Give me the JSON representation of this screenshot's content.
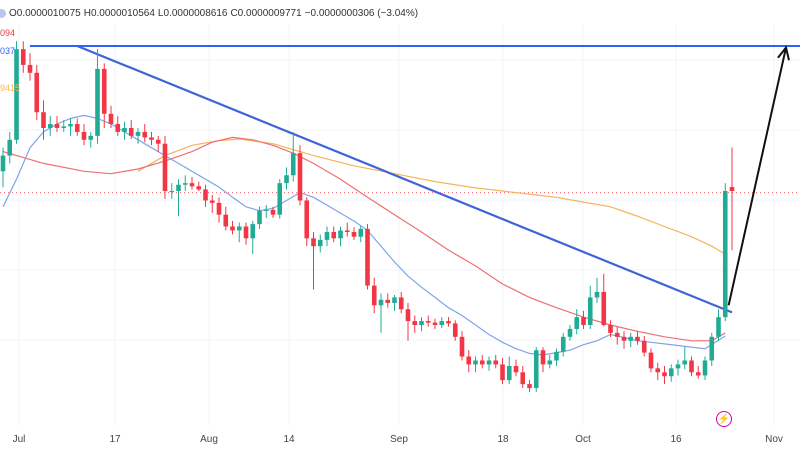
{
  "legend_bar": {
    "open": "O0.0000010075",
    "high": "H0.0000010564",
    "low": "L0.0000008616",
    "close": "C0.0000009771",
    "change": "−0.0000000306 (−3.04%)"
  },
  "price_labels": [
    {
      "text": "094",
      "color": "#f23645"
    },
    {
      "text": "037",
      "color": "#2962ff"
    },
    {
      "text": "9415",
      "color": "#ffb74d"
    }
  ],
  "colors": {
    "up": "#22ab94",
    "down": "#f23645",
    "resistance": "#2962ff",
    "trendline": "#3f63d8",
    "ma_short": "#7fa6e8",
    "ma_mid": "#ef6f73",
    "ma_long": "#f4b45a",
    "arrow": "#111111",
    "grid": "#f0f3fa",
    "badge": "#d400a8"
  },
  "badge_icon": "lightning-icon",
  "chart_data": {
    "type": "candlestick",
    "x_ticks": [
      "Jul",
      "17",
      "Aug",
      "14",
      "Sep",
      "18",
      "Oct",
      "16",
      "Nov"
    ],
    "y_range": [
      6e-07,
      1.1e-06
    ],
    "candles": [
      [
        8.95e-07,
        9.25e-07,
        8.75e-07,
        9.15e-07
      ],
      [
        9.15e-07,
        9.45e-07,
        9.05e-07,
        9.35e-07
      ],
      [
        9.35e-07,
        1.06e-06,
        9.3e-07,
        1.05e-06
      ],
      [
        1.05e-06,
        1.06e-06,
        1.02e-06,
        1.03e-06
      ],
      [
        1.03e-06,
        1.045e-06,
        1.01e-06,
        1.02e-06
      ],
      [
        1.02e-06,
        1.03e-06,
        9.6e-07,
        9.7e-07
      ],
      [
        9.7e-07,
        9.85e-07,
        9.35e-07,
        9.5e-07
      ],
      [
        9.5e-07,
        9.65e-07,
        9.4e-07,
        9.55e-07
      ],
      [
        9.55e-07,
        9.65e-07,
        9.45e-07,
        9.5e-07
      ],
      [
        9.5e-07,
        9.6e-07,
        9.45e-07,
        9.52e-07
      ],
      [
        9.52e-07,
        9.62e-07,
        9.4e-07,
        9.55e-07
      ],
      [
        9.55e-07,
        9.62e-07,
        9.4e-07,
        9.45e-07
      ],
      [
        9.45e-07,
        9.55e-07,
        9.28e-07,
        9.35e-07
      ],
      [
        9.35e-07,
        9.45e-07,
        9.25e-07,
        9.4e-07
      ],
      [
        9.4e-07,
        1.05e-06,
        9.3e-07,
        1.025e-06
      ],
      [
        1.025e-06,
        1.032e-06,
        9.5e-07,
        9.68e-07
      ],
      [
        9.68e-07,
        9.78e-07,
        9.5e-07,
        9.55e-07
      ],
      [
        9.55e-07,
        9.65e-07,
        9.4e-07,
        9.45e-07
      ],
      [
        9.45e-07,
        9.58e-07,
        9.35e-07,
        9.5e-07
      ],
      [
        9.5e-07,
        9.6e-07,
        9.36e-07,
        9.4e-07
      ],
      [
        9.4e-07,
        9.5e-07,
        9.3e-07,
        9.45e-07
      ],
      [
        9.45e-07,
        9.55e-07,
        9.32e-07,
        9.38e-07
      ],
      [
        9.38e-07,
        9.45e-07,
        9.28e-07,
        9.35e-07
      ],
      [
        9.35e-07,
        9.4e-07,
        9.2e-07,
        9.3e-07
      ],
      [
        9.3e-07,
        9.4e-07,
        8.6e-07,
        8.7e-07
      ],
      [
        8.7e-07,
        8.8e-07,
        8.6e-07,
        8.7e-07
      ],
      [
        8.7e-07,
        8.85e-07,
        8.38e-07,
        8.78e-07
      ],
      [
        8.78e-07,
        8.9e-07,
        8.7e-07,
        8.8e-07
      ],
      [
        8.8e-07,
        8.88e-07,
        8.72e-07,
        8.76e-07
      ],
      [
        8.76e-07,
        8.82e-07,
        8.7e-07,
        8.72e-07
      ],
      [
        8.72e-07,
        8.78e-07,
        8.5e-07,
        8.58e-07
      ],
      [
        8.58e-07,
        8.65e-07,
        8.42e-07,
        8.55e-07
      ],
      [
        8.55e-07,
        8.62e-07,
        8.3e-07,
        8.4e-07
      ],
      [
        8.4e-07,
        8.5e-07,
        8.2e-07,
        8.25e-07
      ],
      [
        8.25e-07,
        8.32e-07,
        8.15e-07,
        8.2e-07
      ],
      [
        8.2e-07,
        8.3e-07,
        8.05e-07,
        8.25e-07
      ],
      [
        8.25e-07,
        8.3e-07,
        8.02e-07,
        8.1e-07
      ],
      [
        8.1e-07,
        8.32e-07,
        7.9e-07,
        8.28e-07
      ],
      [
        8.28e-07,
        8.5e-07,
        8.22e-07,
        8.45e-07
      ],
      [
        8.45e-07,
        8.52e-07,
        8.36e-07,
        8.46e-07
      ],
      [
        8.46e-07,
        8.5e-07,
        8.36e-07,
        8.4e-07
      ],
      [
        8.4e-07,
        8.85e-07,
        8.35e-07,
        8.8e-07
      ],
      [
        8.8e-07,
        9e-07,
        8.72e-07,
        8.9e-07
      ],
      [
        8.9e-07,
        9.45e-07,
        8.82e-07,
        9.18e-07
      ],
      [
        9.18e-07,
        9.28e-07,
        8.52e-07,
        8.58e-07
      ],
      [
        8.58e-07,
        8.62e-07,
        8e-07,
        8.1e-07
      ],
      [
        8.1e-07,
        8.18e-07,
        7.45e-07,
        8e-07
      ],
      [
        8e-07,
        8.15e-07,
        7.92e-07,
        8.08e-07
      ],
      [
        8.08e-07,
        8.25e-07,
        8e-07,
        8.18e-07
      ],
      [
        8.18e-07,
        8.25e-07,
        8.05e-07,
        8.1e-07
      ],
      [
        8.1e-07,
        8.25e-07,
        8e-07,
        8.2e-07
      ],
      [
        8.2e-07,
        8.3e-07,
        8.12e-07,
        8.18e-07
      ],
      [
        8.18e-07,
        8.24e-07,
        8.08e-07,
        8.12e-07
      ],
      [
        8.12e-07,
        8.26e-07,
        8.05e-07,
        8.22e-07
      ],
      [
        8.22e-07,
        8.28e-07,
        7.45e-07,
        7.5e-07
      ],
      [
        7.5e-07,
        7.6e-07,
        7.15e-07,
        7.25e-07
      ],
      [
        7.25e-07,
        7.4e-07,
        6.9e-07,
        7.32e-07
      ],
      [
        7.32e-07,
        7.4e-07,
        7.22e-07,
        7.28e-07
      ],
      [
        7.28e-07,
        7.38e-07,
        7.18e-07,
        7.35e-07
      ],
      [
        7.35e-07,
        7.42e-07,
        7.15e-07,
        7.2e-07
      ],
      [
        7.2e-07,
        7.28e-07,
        6.8e-07,
        7.05e-07
      ],
      [
        7.05e-07,
        7.12e-07,
        6.9e-07,
        7e-07
      ],
      [
        7e-07,
        7.1e-07,
        6.92e-07,
        7.05e-07
      ],
      [
        7.05e-07,
        7.12e-07,
        6.98e-07,
        7.03e-07
      ],
      [
        7.03e-07,
        7.08e-07,
        6.95e-07,
        7e-07
      ],
      [
        7e-07,
        7.1e-07,
        6.96e-07,
        7.05e-07
      ],
      [
        7.05e-07,
        7.1e-07,
        6.98e-07,
        7.02e-07
      ],
      [
        7.02e-07,
        7.06e-07,
        6.8e-07,
        6.85e-07
      ],
      [
        6.85e-07,
        6.92e-07,
        6.55e-07,
        6.6e-07
      ],
      [
        6.6e-07,
        6.68e-07,
        6.4e-07,
        6.5e-07
      ],
      [
        6.5e-07,
        6.6e-07,
        6.4e-07,
        6.55e-07
      ],
      [
        6.55e-07,
        6.62e-07,
        6.45e-07,
        6.5e-07
      ],
      [
        6.5e-07,
        6.6e-07,
        6.42e-07,
        6.55e-07
      ],
      [
        6.55e-07,
        6.62e-07,
        6.45e-07,
        6.5e-07
      ],
      [
        6.5e-07,
        6.58e-07,
        6.25e-07,
        6.3e-07
      ],
      [
        6.3e-07,
        6.6e-07,
        6.25e-07,
        6.48e-07
      ],
      [
        6.48e-07,
        6.56e-07,
        6.35e-07,
        6.4e-07
      ],
      [
        6.4e-07,
        6.48e-07,
        6.2e-07,
        6.25e-07
      ],
      [
        6.25e-07,
        6.3e-07,
        6.15e-07,
        6.2e-07
      ],
      [
        6.2e-07,
        6.72e-07,
        6.15e-07,
        6.68e-07
      ],
      [
        6.68e-07,
        6.72e-07,
        6.4e-07,
        6.5e-07
      ],
      [
        6.5e-07,
        6.62e-07,
        6.45e-07,
        6.55e-07
      ],
      [
        6.55e-07,
        6.7e-07,
        6.48e-07,
        6.66e-07
      ],
      [
        6.66e-07,
        6.9e-07,
        6.6e-07,
        6.85e-07
      ],
      [
        6.85e-07,
        7e-07,
        6.8e-07,
        6.95e-07
      ],
      [
        6.95e-07,
        7.2e-07,
        6.88e-07,
        7.1e-07
      ],
      [
        7.1e-07,
        7.18e-07,
        6.95e-07,
        7e-07
      ],
      [
        7e-07,
        7.5e-07,
        6.95e-07,
        7.35e-07
      ],
      [
        7.35e-07,
        7.6e-07,
        7.28e-07,
        7.42e-07
      ],
      [
        7.42e-07,
        7.65e-07,
        6.98e-07,
        7e-07
      ],
      [
        7e-07,
        7.06e-07,
        6.85e-07,
        6.9e-07
      ],
      [
        6.9e-07,
        6.98e-07,
        6.75e-07,
        6.85e-07
      ],
      [
        6.85e-07,
        6.92e-07,
        6.7e-07,
        6.8e-07
      ],
      [
        6.8e-07,
        6.9e-07,
        6.72e-07,
        6.85e-07
      ],
      [
        6.85e-07,
        6.92e-07,
        6.75e-07,
        6.8e-07
      ],
      [
        6.8e-07,
        6.86e-07,
        6.6e-07,
        6.65e-07
      ],
      [
        6.65e-07,
        6.7e-07,
        6.4e-07,
        6.45e-07
      ],
      [
        6.45e-07,
        6.52e-07,
        6.3e-07,
        6.4e-07
      ],
      [
        6.4e-07,
        6.48e-07,
        6.25e-07,
        6.35e-07
      ],
      [
        6.35e-07,
        6.5e-07,
        6.28e-07,
        6.45e-07
      ],
      [
        6.45e-07,
        6.56e-07,
        6.36e-07,
        6.5e-07
      ],
      [
        6.5e-07,
        6.72e-07,
        6.44e-07,
        6.55e-07
      ],
      [
        6.55e-07,
        6.6e-07,
        6.35e-07,
        6.4e-07
      ],
      [
        6.4e-07,
        6.48e-07,
        6.32e-07,
        6.36e-07
      ],
      [
        6.36e-07,
        6.6e-07,
        6.3e-07,
        6.55e-07
      ],
      [
        6.55e-07,
        6.9e-07,
        6.48e-07,
        6.85e-07
      ],
      [
        6.85e-07,
        7.2e-07,
        6.8e-07,
        7.1e-07
      ],
      [
        7.1e-07,
        8.8e-07,
        7.05e-07,
        8.7e-07
      ],
      [
        8.75e-07,
        9.25e-07,
        7.95e-07,
        8.7e-07
      ]
    ],
    "ma_short": [
      [
        0,
        8.5e-07
      ],
      [
        2,
        8.85e-07
      ],
      [
        4,
        9.25e-07
      ],
      [
        6,
        9.45e-07
      ],
      [
        8,
        9.55e-07
      ],
      [
        10,
        9.62e-07
      ],
      [
        12,
        9.66e-07
      ],
      [
        14,
        9.62e-07
      ],
      [
        16,
        9.55e-07
      ],
      [
        18,
        9.45e-07
      ],
      [
        20,
        9.35e-07
      ],
      [
        22,
        9.25e-07
      ],
      [
        24,
        9.15e-07
      ],
      [
        26,
        9.05e-07
      ],
      [
        28,
        8.95e-07
      ],
      [
        30,
        8.85e-07
      ],
      [
        32,
        8.75e-07
      ],
      [
        34,
        8.62e-07
      ],
      [
        36,
        8.5e-07
      ],
      [
        38,
        8.45e-07
      ],
      [
        40,
        8.48e-07
      ],
      [
        42,
        8.58e-07
      ],
      [
        44,
        8.68e-07
      ],
      [
        46,
        8.62e-07
      ],
      [
        48,
        8.52e-07
      ],
      [
        50,
        8.42e-07
      ],
      [
        52,
        8.32e-07
      ],
      [
        54,
        8.2e-07
      ],
      [
        56,
        8e-07
      ],
      [
        58,
        7.8e-07
      ],
      [
        60,
        7.62e-07
      ],
      [
        62,
        7.48e-07
      ],
      [
        64,
        7.35e-07
      ],
      [
        66,
        7.22e-07
      ],
      [
        68,
        7.12e-07
      ],
      [
        70,
        7e-07
      ],
      [
        72,
        6.88e-07
      ],
      [
        74,
        6.78e-07
      ],
      [
        76,
        6.7e-07
      ],
      [
        78,
        6.64e-07
      ],
      [
        80,
        6.62e-07
      ],
      [
        82,
        6.65e-07
      ],
      [
        84,
        6.68e-07
      ],
      [
        86,
        6.75e-07
      ],
      [
        88,
        6.8e-07
      ],
      [
        90,
        6.88e-07
      ],
      [
        92,
        6.84e-07
      ],
      [
        94,
        6.8e-07
      ],
      [
        96,
        6.78e-07
      ],
      [
        98,
        6.76e-07
      ],
      [
        100,
        6.74e-07
      ],
      [
        102,
        6.72e-07
      ],
      [
        104,
        6.7e-07
      ],
      [
        107,
        6.86e-07
      ]
    ],
    "ma_mid": [
      [
        0,
        9.2e-07
      ],
      [
        6,
        9.05e-07
      ],
      [
        12,
        8.95e-07
      ],
      [
        16,
        8.92e-07
      ],
      [
        20,
        8.98e-07
      ],
      [
        24,
        9.08e-07
      ],
      [
        28,
        9.2e-07
      ],
      [
        31,
        9.32e-07
      ],
      [
        34,
        9.38e-07
      ],
      [
        37,
        9.35e-07
      ],
      [
        40,
        9.28e-07
      ],
      [
        43,
        9.18e-07
      ],
      [
        46,
        9.05e-07
      ],
      [
        50,
        8.85e-07
      ],
      [
        54,
        8.62e-07
      ],
      [
        58,
        8.4e-07
      ],
      [
        62,
        8.18e-07
      ],
      [
        66,
        7.95e-07
      ],
      [
        70,
        7.75e-07
      ],
      [
        74,
        7.52e-07
      ],
      [
        78,
        7.35e-07
      ],
      [
        82,
        7.22e-07
      ],
      [
        86,
        7.1e-07
      ],
      [
        90,
        7e-07
      ],
      [
        94,
        6.92e-07
      ],
      [
        98,
        6.85e-07
      ],
      [
        102,
        6.8e-07
      ],
      [
        105,
        6.8e-07
      ],
      [
        107,
        6.9e-07
      ]
    ],
    "ma_long": [
      [
        20,
        8.95e-07
      ],
      [
        24,
        9.15e-07
      ],
      [
        28,
        9.28e-07
      ],
      [
        32,
        9.34e-07
      ],
      [
        35,
        9.36e-07
      ],
      [
        40,
        9.3e-07
      ],
      [
        46,
        9.15e-07
      ],
      [
        52,
        9.02e-07
      ],
      [
        58,
        8.92e-07
      ],
      [
        64,
        8.82e-07
      ],
      [
        70,
        8.74e-07
      ],
      [
        76,
        8.68e-07
      ],
      [
        82,
        8.62e-07
      ],
      [
        86,
        8.56e-07
      ],
      [
        90,
        8.5e-07
      ],
      [
        94,
        8.38e-07
      ],
      [
        98,
        8.25e-07
      ],
      [
        102,
        8.12e-07
      ],
      [
        105,
        8e-07
      ],
      [
        107,
        7.9e-07
      ]
    ],
    "resistance_level": 1.054e-06,
    "trendline": [
      [
        11,
        1.054e-06
      ],
      [
        108,
        7.16e-07
      ]
    ],
    "projection_arrow": [
      [
        107.5,
        7.25e-07
      ],
      [
        116,
        1.052e-06
      ]
    ],
    "last_price": 8.68e-07
  }
}
